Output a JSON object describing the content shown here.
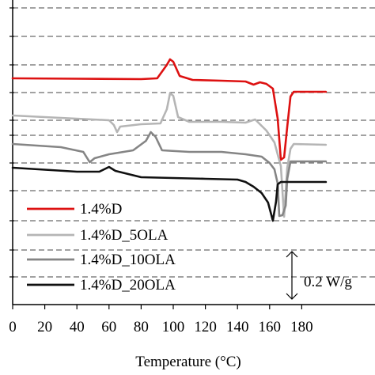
{
  "chart_data": {
    "type": "line",
    "title": "",
    "xlabel": "Temperature (°C)",
    "ylabel": "",
    "xlim": [
      0,
      195
    ],
    "x_ticks": [
      "0",
      "20",
      "40",
      "60",
      "80",
      "100",
      "120",
      "140",
      "160",
      "180"
    ],
    "grid": true,
    "legend_position": "bottom-left",
    "scale_bar_label": "0.2 W/g",
    "series": [
      {
        "name": "1.4%D",
        "color": "#dd1111",
        "points": [
          [
            0,
            99
          ],
          [
            40,
            99.5
          ],
          [
            80,
            100
          ],
          [
            90,
            99
          ],
          [
            96,
            82
          ],
          [
            98,
            75
          ],
          [
            100,
            78
          ],
          [
            104,
            96
          ],
          [
            112,
            101
          ],
          [
            130,
            102
          ],
          [
            145,
            103
          ],
          [
            150,
            107
          ],
          [
            154,
            104
          ],
          [
            158,
            106
          ],
          [
            162,
            112
          ],
          [
            165,
            150
          ],
          [
            167,
            202
          ],
          [
            169,
            199
          ],
          [
            171,
            160
          ],
          [
            173,
            122
          ],
          [
            175,
            116
          ],
          [
            195,
            116
          ]
        ]
      },
      {
        "name": "1.4%D_5OLA",
        "color": "#b5b5b5",
        "points": [
          [
            0,
            146
          ],
          [
            40,
            150
          ],
          [
            60,
            152
          ],
          [
            63,
            158
          ],
          [
            65,
            167
          ],
          [
            67,
            160
          ],
          [
            80,
            157
          ],
          [
            92,
            156
          ],
          [
            96,
            138
          ],
          [
            98,
            118
          ],
          [
            100,
            121
          ],
          [
            103,
            148
          ],
          [
            110,
            154
          ],
          [
            130,
            154
          ],
          [
            145,
            155
          ],
          [
            151,
            151
          ],
          [
            154,
            157
          ],
          [
            158,
            165
          ],
          [
            163,
            180
          ],
          [
            167,
            210
          ],
          [
            169,
            274
          ],
          [
            171,
            212
          ],
          [
            173,
            188
          ],
          [
            175,
            182
          ],
          [
            195,
            183
          ]
        ]
      },
      {
        "name": "1.4%D_10OLA",
        "color": "#858585",
        "points": [
          [
            0,
            182
          ],
          [
            30,
            186
          ],
          [
            44,
            192
          ],
          [
            48,
            205
          ],
          [
            51,
            200
          ],
          [
            60,
            195
          ],
          [
            75,
            190
          ],
          [
            83,
            178
          ],
          [
            86,
            167
          ],
          [
            89,
            173
          ],
          [
            93,
            190
          ],
          [
            110,
            192
          ],
          [
            130,
            192
          ],
          [
            145,
            195
          ],
          [
            155,
            198
          ],
          [
            160,
            206
          ],
          [
            163,
            214
          ],
          [
            165,
            232
          ],
          [
            166,
            273
          ],
          [
            168,
            272
          ],
          [
            170,
            260
          ],
          [
            171,
            226
          ],
          [
            173,
            204
          ],
          [
            195,
            204
          ]
        ]
      },
      {
        "name": "1.4%D_20OLA",
        "color": "#101010",
        "points": [
          [
            0,
            212
          ],
          [
            40,
            217
          ],
          [
            54,
            217
          ],
          [
            58,
            213
          ],
          [
            60,
            211
          ],
          [
            64,
            216
          ],
          [
            80,
            224
          ],
          [
            100,
            225
          ],
          [
            120,
            226
          ],
          [
            140,
            227
          ],
          [
            145,
            230
          ],
          [
            150,
            236
          ],
          [
            155,
            244
          ],
          [
            159,
            256
          ],
          [
            161,
            271
          ],
          [
            162,
            279
          ],
          [
            164,
            255
          ],
          [
            165,
            233
          ],
          [
            167,
            230
          ],
          [
            195,
            230
          ]
        ]
      }
    ]
  }
}
